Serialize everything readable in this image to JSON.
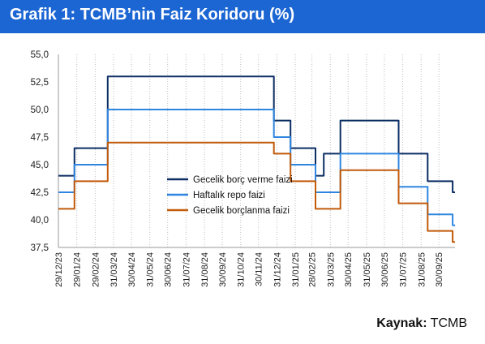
{
  "header": {
    "title": "Grafik 1: TCMB’nin Faiz Koridoru (%)"
  },
  "source": {
    "label": "Kaynak:",
    "value": " TCMB"
  },
  "colors": {
    "title_bg": "#1c66d4",
    "grid": "#bdbdbd"
  },
  "chart_data": {
    "type": "line",
    "title": "Grafik 1: TCMB’nin Faiz Koridoru (%)",
    "xlabel": "",
    "ylabel": "",
    "ylim": [
      37.5,
      55.0
    ],
    "yticks": [
      "55,0",
      "52,5",
      "50,0",
      "47,5",
      "45,0",
      "42,5",
      "40,0",
      "37,5"
    ],
    "ytick_values": [
      55.0,
      52.5,
      50.0,
      47.5,
      45.0,
      42.5,
      40.0,
      37.5
    ],
    "xticks": [
      "29/12/23",
      "29/01/24",
      "29/02/24",
      "31/03/24",
      "30/04/24",
      "31/05/24",
      "30/06/24",
      "31/07/24",
      "31/08/24",
      "30/09/24",
      "31/10/24",
      "30/11/24",
      "31/12/24",
      "31/01/25",
      "28/02/25",
      "31/03/25",
      "30/04/25",
      "31/05/25",
      "30/06/25",
      "31/07/25",
      "31/08/25",
      "30/09/25"
    ],
    "xtick_dates": [
      "2023-12-29",
      "2024-01-29",
      "2024-02-29",
      "2024-03-31",
      "2024-04-30",
      "2024-05-31",
      "2024-06-30",
      "2024-07-31",
      "2024-08-31",
      "2024-09-30",
      "2024-10-31",
      "2024-11-30",
      "2024-12-31",
      "2025-01-31",
      "2025-02-28",
      "2025-03-31",
      "2025-04-30",
      "2025-05-31",
      "2025-06-30",
      "2025-07-31",
      "2025-08-31",
      "2025-09-30"
    ],
    "x_range": [
      "2023-12-29",
      "2025-10-27"
    ],
    "grid": "vertical",
    "legend_position": "center-right",
    "series": [
      {
        "name": "Gecelik borç verme faizi",
        "color": "#0b2e63",
        "points": [
          [
            "2023-12-29",
            44.0
          ],
          [
            "2024-01-25",
            44.0
          ],
          [
            "2024-01-25",
            46.5
          ],
          [
            "2024-03-21",
            46.5
          ],
          [
            "2024-03-21",
            53.0
          ],
          [
            "2024-12-26",
            53.0
          ],
          [
            "2024-12-26",
            49.0
          ],
          [
            "2025-01-23",
            49.0
          ],
          [
            "2025-01-23",
            46.5
          ],
          [
            "2025-03-06",
            46.5
          ],
          [
            "2025-03-06",
            44.0
          ],
          [
            "2025-03-20",
            44.0
          ],
          [
            "2025-03-20",
            46.0
          ],
          [
            "2025-04-17",
            46.0
          ],
          [
            "2025-04-17",
            49.0
          ],
          [
            "2025-07-24",
            49.0
          ],
          [
            "2025-07-24",
            46.0
          ],
          [
            "2025-09-11",
            46.0
          ],
          [
            "2025-09-11",
            43.5
          ],
          [
            "2025-10-23",
            43.5
          ],
          [
            "2025-10-23",
            42.5
          ],
          [
            "2025-10-27",
            42.5
          ]
        ]
      },
      {
        "name": "Haftalık repo faizi",
        "color": "#2f86e0",
        "points": [
          [
            "2023-12-29",
            42.5
          ],
          [
            "2024-01-25",
            42.5
          ],
          [
            "2024-01-25",
            45.0
          ],
          [
            "2024-03-21",
            45.0
          ],
          [
            "2024-03-21",
            50.0
          ],
          [
            "2024-12-26",
            50.0
          ],
          [
            "2024-12-26",
            47.5
          ],
          [
            "2025-01-23",
            47.5
          ],
          [
            "2025-01-23",
            45.0
          ],
          [
            "2025-03-06",
            45.0
          ],
          [
            "2025-03-06",
            42.5
          ],
          [
            "2025-04-17",
            42.5
          ],
          [
            "2025-04-17",
            46.0
          ],
          [
            "2025-07-24",
            46.0
          ],
          [
            "2025-07-24",
            43.0
          ],
          [
            "2025-09-11",
            43.0
          ],
          [
            "2025-09-11",
            40.5
          ],
          [
            "2025-10-23",
            40.5
          ],
          [
            "2025-10-23",
            39.5
          ],
          [
            "2025-10-27",
            39.5
          ]
        ]
      },
      {
        "name": "Gecelik borçlanma faizi",
        "color": "#c25a0a",
        "points": [
          [
            "2023-12-29",
            41.0
          ],
          [
            "2024-01-25",
            41.0
          ],
          [
            "2024-01-25",
            43.5
          ],
          [
            "2024-03-21",
            43.5
          ],
          [
            "2024-03-21",
            47.0
          ],
          [
            "2024-12-26",
            47.0
          ],
          [
            "2024-12-26",
            46.0
          ],
          [
            "2025-01-23",
            46.0
          ],
          [
            "2025-01-23",
            43.5
          ],
          [
            "2025-03-06",
            43.5
          ],
          [
            "2025-03-06",
            41.0
          ],
          [
            "2025-04-17",
            41.0
          ],
          [
            "2025-04-17",
            44.5
          ],
          [
            "2025-07-24",
            44.5
          ],
          [
            "2025-07-24",
            41.5
          ],
          [
            "2025-09-11",
            41.5
          ],
          [
            "2025-09-11",
            39.0
          ],
          [
            "2025-10-23",
            39.0
          ],
          [
            "2025-10-23",
            38.0
          ],
          [
            "2025-10-27",
            38.0
          ]
        ]
      }
    ]
  }
}
